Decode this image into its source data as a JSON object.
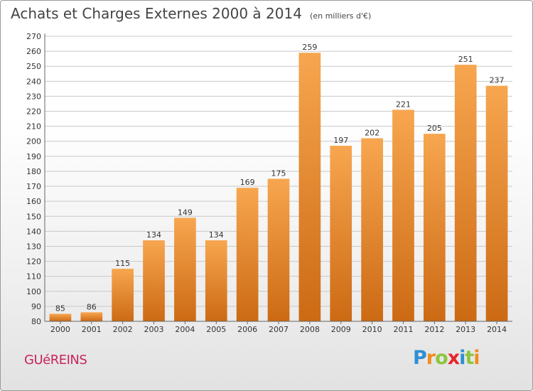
{
  "header": {
    "title": "Achats et Charges Externes 2000 à 2014",
    "subtitle": "(en milliers d'€)"
  },
  "footer": {
    "commune": "GUéREINS",
    "logo": [
      "P",
      "r",
      "o",
      "x",
      "i",
      "t",
      "i"
    ],
    "logo_colors": [
      "#2d8fd5",
      "#f28c1e",
      "#8cc63f",
      "#e8262b",
      "#2d8fd5",
      "#8cc63f",
      "#f28c1e"
    ]
  },
  "colors": {
    "bar_light": "#f7a64f",
    "bar_dark": "#cc6a14",
    "grid": "#c8c8c8",
    "axis": "#666666"
  },
  "chart_data": {
    "type": "bar",
    "title": "Achats et Charges Externes 2000 à 2014",
    "subtitle": "(en milliers d'€)",
    "categories": [
      "2000",
      "2001",
      "2002",
      "2003",
      "2004",
      "2005",
      "2006",
      "2007",
      "2008",
      "2009",
      "2010",
      "2011",
      "2012",
      "2013",
      "2014"
    ],
    "values": [
      85,
      86,
      115,
      134,
      149,
      134,
      169,
      175,
      259,
      197,
      202,
      221,
      205,
      251,
      237
    ],
    "ylim": [
      80,
      270
    ],
    "yticks": [
      80,
      90,
      100,
      110,
      120,
      130,
      140,
      150,
      160,
      170,
      180,
      190,
      200,
      210,
      220,
      230,
      240,
      250,
      260,
      270
    ],
    "grid": true
  }
}
